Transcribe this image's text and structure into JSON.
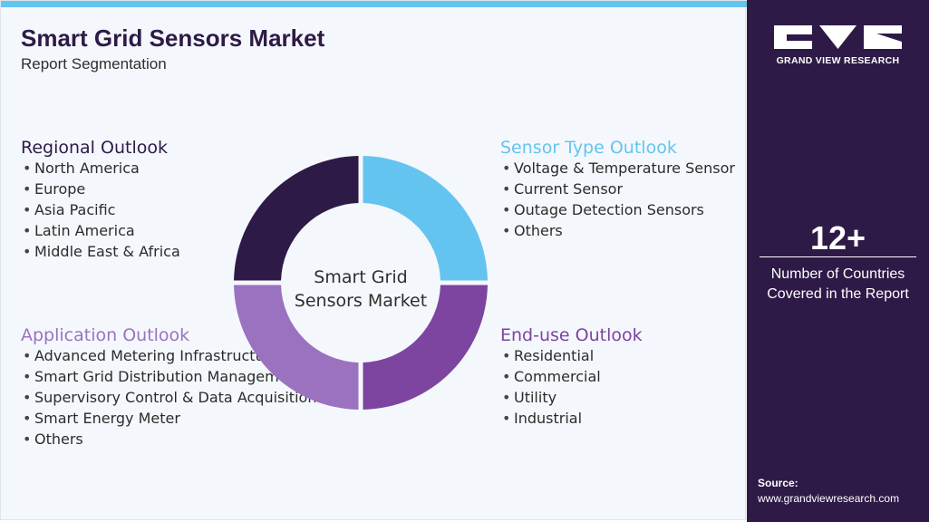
{
  "header": {
    "title": "Smart Grid Sensors Market",
    "subtitle": "Report Segmentation"
  },
  "center_label": [
    "Smart Grid",
    "Sensors Market"
  ],
  "segments": {
    "regional": {
      "title": "Regional Outlook",
      "color": "#2e1a47",
      "items": [
        "North America",
        "Europe",
        "Asia Pacific",
        "Latin America",
        "Middle East & Africa"
      ]
    },
    "sensor_type": {
      "title": "Sensor Type Outlook",
      "color": "#64c4f0",
      "items": [
        "Voltage & Temperature Sensor",
        "Current Sensor",
        "Outage Detection Sensors",
        "Others"
      ]
    },
    "application": {
      "title": "Application Outlook",
      "color": "#9b72c0",
      "items": [
        "Advanced Metering Infrastructure",
        "Smart Grid Distribution Management",
        "Supervisory Control & Data Acquisition",
        "Smart Energy Meter",
        "Others"
      ]
    },
    "end_use": {
      "title": "End-use Outlook",
      "color": "#7d44a0",
      "items": [
        "Residential",
        "Commercial",
        "Utility",
        "Industrial"
      ]
    }
  },
  "brand": {
    "name": "GRAND VIEW RESEARCH",
    "logo_icon": "gvr-logo-icon"
  },
  "stat": {
    "value": "12+",
    "description": "Number of Countries Covered in the Report"
  },
  "source": {
    "label": "Source:",
    "url": "www.grandviewresearch.com"
  },
  "colors": {
    "panel": "#2e1a47",
    "top_bar": "#64c4f0",
    "main_bg": "#f4f8fc"
  }
}
